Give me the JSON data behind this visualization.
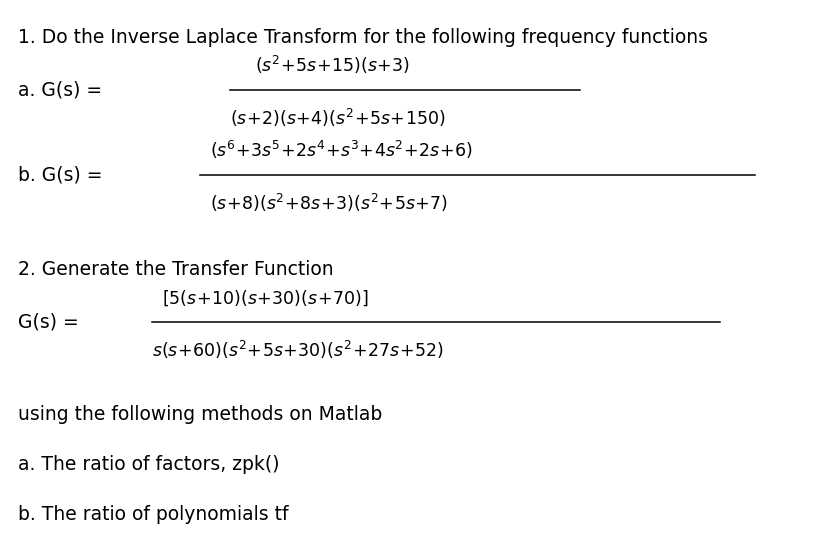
{
  "background_color": "#ffffff",
  "text_color": "#000000",
  "title1": "1. Do the Inverse Laplace Transform for the following frequency functions",
  "title2": "2. Generate the Transfer Function",
  "text3": "using the following methods on Matlab",
  "text4a": "a. The ratio of factors, zpk()",
  "text4b": "b. The ratio of polynomials tf",
  "label_a": "a. G(s) =",
  "num_a": "$(s^2\\!+\\!5s\\!+\\!15)(s\\!+\\!3)$",
  "den_a": "$(s\\!+\\!2)(s\\!+\\!4)(s^2\\!+\\!5s\\!+\\!150)$",
  "label_b": "b. G(s) =",
  "num_b": "$(s^6\\!+\\!3s^5\\!+\\!2s^4\\!+\\!s^3\\!+\\!4s^2\\!+\\!2s\\!+\\!6)$",
  "den_b": "$(s\\!+\\!8)(s^2\\!+\\!8s\\!+\\!3)(s^2\\!+\\!5s\\!+\\!7)$",
  "label_gs": "G(s) =",
  "num_gs": "$[5(s\\!+\\!10)(s\\!+\\!30)(s\\!+\\!70)]$",
  "den_gs": "$s(s\\!+\\!60)(s^2\\!+\\!5s\\!+\\!30)(s^2\\!+\\!27s\\!+\\!52)$",
  "fs": 13.5,
  "fm": 12.5,
  "fig_width": 8.33,
  "fig_height": 5.4
}
